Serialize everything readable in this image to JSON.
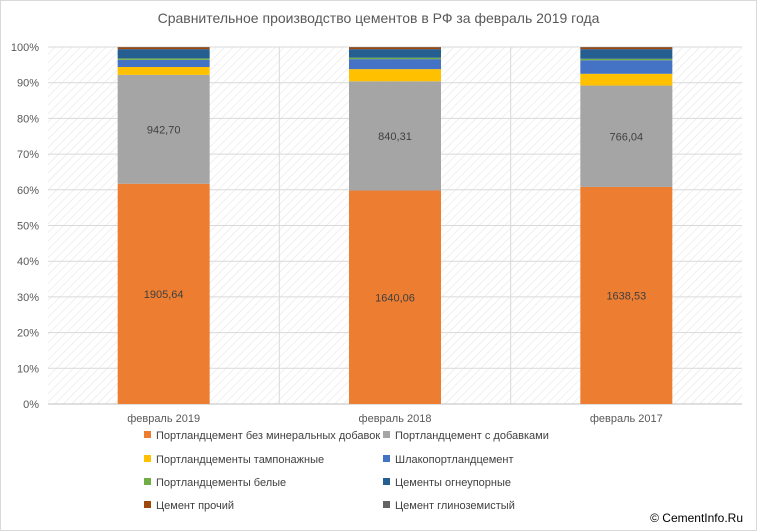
{
  "chart_data": {
    "type": "bar",
    "stacked": true,
    "normalized": true,
    "title": "Сравнительное производство цементов в РФ за февраль 2019 года",
    "categories": [
      "февраль 2019",
      "февраль 2018",
      "февраль 2017"
    ],
    "y_ticks": [
      "0%",
      "10%",
      "20%",
      "30%",
      "40%",
      "50%",
      "60%",
      "70%",
      "80%",
      "90%",
      "100%"
    ],
    "ylim": [
      0,
      100
    ],
    "grid": true,
    "legend_position": "bottom",
    "series": [
      {
        "name": "Портландцемент без минеральных добавок",
        "color": "#ed7d31",
        "percent": [
          61.7,
          59.8,
          60.8
        ],
        "labels": [
          "1905,64",
          "1640,06",
          "1638,53"
        ]
      },
      {
        "name": "Портландцемент с добавками",
        "color": "#a5a5a5",
        "percent": [
          30.5,
          30.6,
          28.4
        ],
        "labels": [
          "942,70",
          "840,31",
          "766,04"
        ]
      },
      {
        "name": "Портландцементы тампонажные",
        "color": "#ffc000",
        "percent": [
          2.2,
          3.4,
          3.3
        ],
        "labels": [
          "",
          "",
          ""
        ]
      },
      {
        "name": "Шлакопортландцемент",
        "color": "#4472c4",
        "percent": [
          2.0,
          2.8,
          3.8
        ],
        "labels": [
          "",
          "",
          ""
        ]
      },
      {
        "name": "Портландцементы белые",
        "color": "#70ad47",
        "percent": [
          0.4,
          0.4,
          0.4
        ],
        "labels": [
          "",
          "",
          ""
        ]
      },
      {
        "name": "Цементы огнеупорные",
        "color": "#255e91",
        "percent": [
          2.6,
          2.4,
          2.7
        ],
        "labels": [
          "",
          "",
          ""
        ]
      },
      {
        "name": "Цемент прочий",
        "color": "#9e480e",
        "percent": [
          0.5,
          0.5,
          0.5
        ],
        "labels": [
          "",
          "",
          ""
        ]
      },
      {
        "name": "Цемент глиноземистый",
        "color": "#636363",
        "percent": [
          0.1,
          0.1,
          0.1
        ],
        "labels": [
          "",
          "",
          ""
        ]
      }
    ]
  },
  "copyright": "© CementInfo.Ru"
}
